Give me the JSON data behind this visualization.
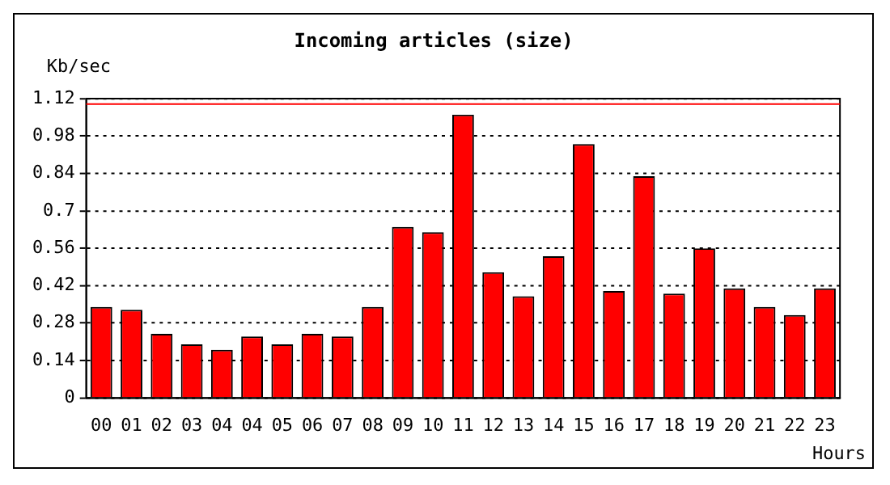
{
  "chart_data": {
    "type": "bar",
    "title": "Incoming articles (size)",
    "ylabel": "Kb/sec",
    "xlabel": "Hours",
    "categories": [
      "00",
      "01",
      "02",
      "03",
      "04",
      "04",
      "05",
      "06",
      "07",
      "08",
      "09",
      "10",
      "11",
      "12",
      "13",
      "14",
      "15",
      "16",
      "17",
      "18",
      "19",
      "20",
      "21",
      "22",
      "23"
    ],
    "values": [
      0.34,
      0.33,
      0.24,
      0.2,
      0.18,
      0.23,
      0.2,
      0.24,
      0.23,
      0.34,
      0.64,
      0.62,
      1.06,
      0.47,
      0.38,
      0.53,
      0.95,
      0.4,
      0.83,
      0.39,
      0.56,
      0.41,
      0.34,
      0.31,
      0.41
    ],
    "color": "#ff0000",
    "ylim": [
      0,
      1.12
    ],
    "yticks": [
      0,
      0.14,
      0.28,
      0.42,
      0.56,
      {
        "value": 0.7,
        "label": "0.7"
      },
      0.84,
      0.98,
      1.12
    ],
    "grid": "y",
    "line_style": "dotted",
    "ref_lines": [
      {
        "axis": "y",
        "value": 1.1,
        "color": "#ff0000"
      }
    ]
  }
}
